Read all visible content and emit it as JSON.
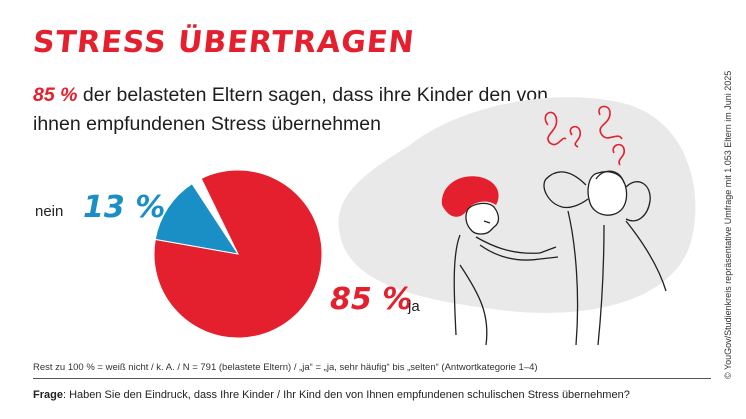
{
  "header": {
    "title": "STRESS ÜBERTRAGEN",
    "subtitle_highlight": "85 %",
    "subtitle_rest": " der belasteten Eltern sagen, dass ihre Kinder den von ihnen empfundenen Stress übernehmen"
  },
  "colors": {
    "accent_red": "#e4202e",
    "accent_blue": "#1a8fc6",
    "blob_gray": "#e9e9e9"
  },
  "chart_data": {
    "type": "pie",
    "slices": [
      {
        "label": "ja",
        "value": 85,
        "display": "85 %",
        "color": "#e4202e"
      },
      {
        "label": "nein",
        "value": 13,
        "display": "13 %",
        "color": "#1a8fc6"
      }
    ],
    "remainder_value": 2
  },
  "footnote": "Rest zu 100 % = weiß nicht / k. A. / N = 791 (belastete Eltern) / „ja“ = „ja, sehr häufig“ bis „selten“ (Antwortkategorie 1–4)",
  "question": {
    "label": "Frage",
    "text": ": Haben Sie den Eindruck, dass Ihre Kinder / Ihr Kind den von Ihnen empfundenen schulischen Stress übernehmen?"
  },
  "source": "© YouGov/Studienkreis repräsentative Umfrage mit 1.053 Eltern im Juni 2025",
  "illustration": {
    "icon": "stressed-parent-child-illustration"
  }
}
